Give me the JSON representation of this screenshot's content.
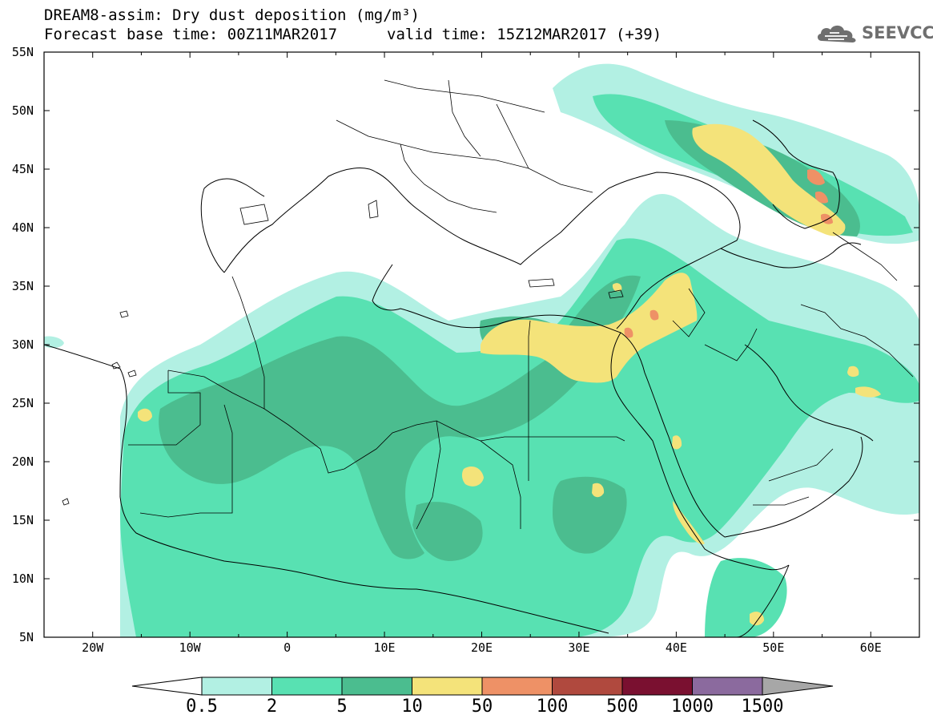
{
  "header": {
    "title_line1": "DREAM8-assim: Dry dust deposition (mg/m³)",
    "title_line2": "Forecast base time: 00Z11MAR2017",
    "valid_time": "valid time: 15Z12MAR2017 (+39)",
    "logo_text": "SEEVCCC",
    "logo_icon": "cloud-icon"
  },
  "map": {
    "lon_range": [
      -25,
      65
    ],
    "lat_range": [
      5,
      55
    ],
    "lat_labels": [
      "55N",
      "50N",
      "45N",
      "40N",
      "35N",
      "30N",
      "25N",
      "20N",
      "15N",
      "10N",
      "5N"
    ],
    "lon_labels": [
      "20W",
      "10W",
      "0",
      "10E",
      "20E",
      "30E",
      "40E",
      "50E",
      "60E"
    ]
  },
  "legend": {
    "thresholds": [
      "0.5",
      "2",
      "5",
      "10",
      "50",
      "100",
      "500",
      "1000",
      "1500"
    ],
    "colors": [
      "#b2f0e3",
      "#58e1b2",
      "#4bbd8f",
      "#f4e37a",
      "#ee9166",
      "#b0493e",
      "#7a1030",
      "#8b6a9e",
      "#a7a7a7"
    ]
  }
}
